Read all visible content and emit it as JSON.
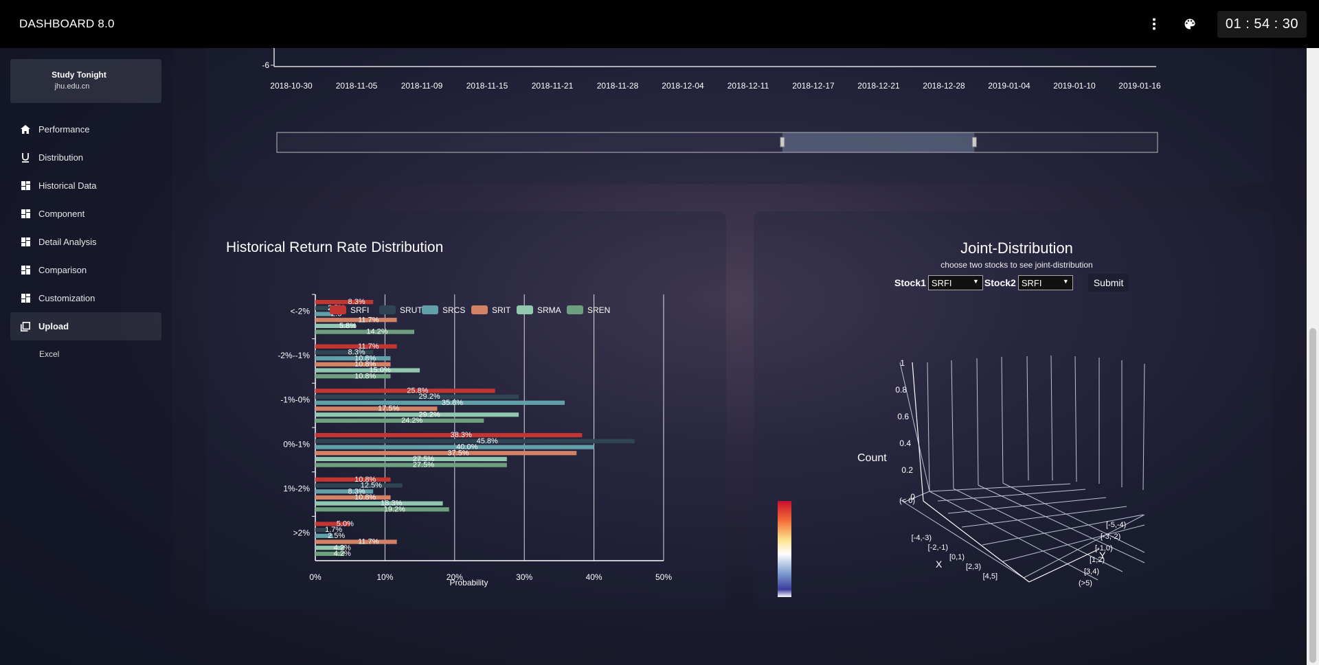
{
  "app": {
    "title": "DASHBOARD 8.0",
    "clock": "01 : 54 : 30"
  },
  "header": {
    "menu_icon": "more-vert-icon",
    "theme_icon": "palette-icon"
  },
  "profile": {
    "name": "Study Tonight",
    "email": "jhu.edu.cn"
  },
  "sidebar": {
    "items": [
      {
        "label": "Performance",
        "icon": "home-icon"
      },
      {
        "label": "Distribution",
        "icon": "underline-icon"
      },
      {
        "label": "Historical Data",
        "icon": "dashboard-icon"
      },
      {
        "label": "Component",
        "icon": "dashboard-icon"
      },
      {
        "label": "Detail Analysis",
        "icon": "dashboard-icon"
      },
      {
        "label": "Comparison",
        "icon": "dashboard-icon"
      },
      {
        "label": "Customization",
        "icon": "dashboard-icon"
      },
      {
        "label": "Upload",
        "icon": "library-icon",
        "active": true
      }
    ],
    "subitems": [
      "Excel"
    ]
  },
  "top_chart": {
    "y_min_label": "-6",
    "x_labels": [
      "2018-10-30",
      "2018-11-05",
      "2018-11-09",
      "2018-11-15",
      "2018-11-21",
      "2018-11-28",
      "2018-12-04",
      "2018-12-11",
      "2018-12-17",
      "2018-12-21",
      "2018-12-28",
      "2019-01-04",
      "2019-01-10",
      "2019-01-16"
    ],
    "zoom_range": [
      0.574,
      0.792
    ]
  },
  "hist_panel": {
    "title": "Historical Return Rate Distribution"
  },
  "joint_panel": {
    "title": "Joint-Distribution",
    "subtitle": "choose two stocks to see joint-distribution",
    "stock1_label": "Stock1",
    "stock2_label": "Stock2",
    "stock1_value": "SRFI",
    "stock2_value": "SRFI",
    "submit_label": "Submit",
    "z_label": "Count",
    "x_label": "X",
    "y_label": "Y",
    "z_ticks": [
      "0",
      "0.2",
      "0.4",
      "0.6",
      "0.8",
      "1"
    ],
    "x_ticks": [
      "(< 0)",
      "[-4,-3)",
      "[-2,-1)",
      "[0,1)",
      "[2,3)",
      "[4,5]"
    ],
    "y_ticks": [
      "[-5,-4)",
      "[-3,-2)",
      "[-1,0)",
      "[1,2)",
      "[3,4)",
      "(>5)"
    ]
  },
  "chart_data": {
    "type": "bar",
    "orientation": "horizontal",
    "categories": [
      "<-2%",
      "-2%--1%",
      "-1%-0%",
      "0%-1%",
      "1%-2%",
      ">2%"
    ],
    "series": [
      {
        "name": "SRFI",
        "values": [
          8.3,
          11.7,
          25.8,
          38.3,
          10.8,
          5.0
        ],
        "labels": [
          "8.3%",
          "11.7%",
          "25.8%",
          "38.3%",
          "10.8%",
          "5.0%"
        ]
      },
      {
        "name": "SRUT",
        "values": [
          2.5,
          8.3,
          29.2,
          45.8,
          12.5,
          1.7
        ],
        "labels": [
          "2.5%",
          "8.3%",
          "29.2%",
          "45.8%",
          "12.5%",
          "1.7%"
        ]
      },
      {
        "name": "SRCS",
        "values": [
          2.5,
          10.8,
          35.8,
          40.0,
          8.3,
          2.5
        ],
        "labels": [
          "2.5",
          "10.8%",
          "35.8%",
          "40.0%",
          "8.3%",
          "2.5%"
        ]
      },
      {
        "name": "SRIT",
        "values": [
          11.7,
          10.8,
          17.5,
          37.5,
          10.8,
          11.7
        ],
        "labels": [
          "11.7%",
          "10.8%",
          "17.5%",
          "37.5%",
          "10.8%",
          "11.7%"
        ]
      },
      {
        "name": "SRMA",
        "values": [
          5.8,
          15.0,
          29.2,
          27.5,
          18.3,
          4.2
        ],
        "labels": [
          "5.8%",
          "15.0%",
          "29.2%",
          "27.5%",
          "18.3%",
          "4.2%"
        ]
      },
      {
        "name": "SREN",
        "values": [
          14.2,
          10.8,
          24.2,
          27.5,
          19.2,
          4.2
        ],
        "labels": [
          "14.2%",
          "10.8%",
          "24.2%",
          "27.5%",
          "19.2%",
          "4.2%"
        ]
      }
    ],
    "colors": [
      "#c23531",
      "#2f4554",
      "#61a0a8",
      "#d48265",
      "#91c7ae",
      "#6e9f7f"
    ],
    "xlabel": "Probability",
    "ylabel": "",
    "xlim": [
      0,
      50
    ],
    "x_ticks": [
      "0%",
      "10%",
      "20%",
      "30%",
      "40%",
      "50%"
    ],
    "legend_position": "top",
    "grid": true
  }
}
